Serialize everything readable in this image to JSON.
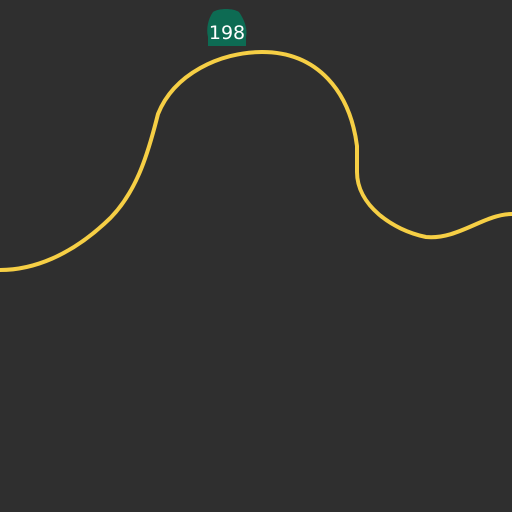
{
  "map": {
    "background_color": "#2f2f2f",
    "road": {
      "color": "#f6cf45",
      "route_number": "198"
    },
    "shield": {
      "icon": "california-state-route-shield-icon",
      "color": "#0d6b53",
      "label": "198"
    }
  }
}
